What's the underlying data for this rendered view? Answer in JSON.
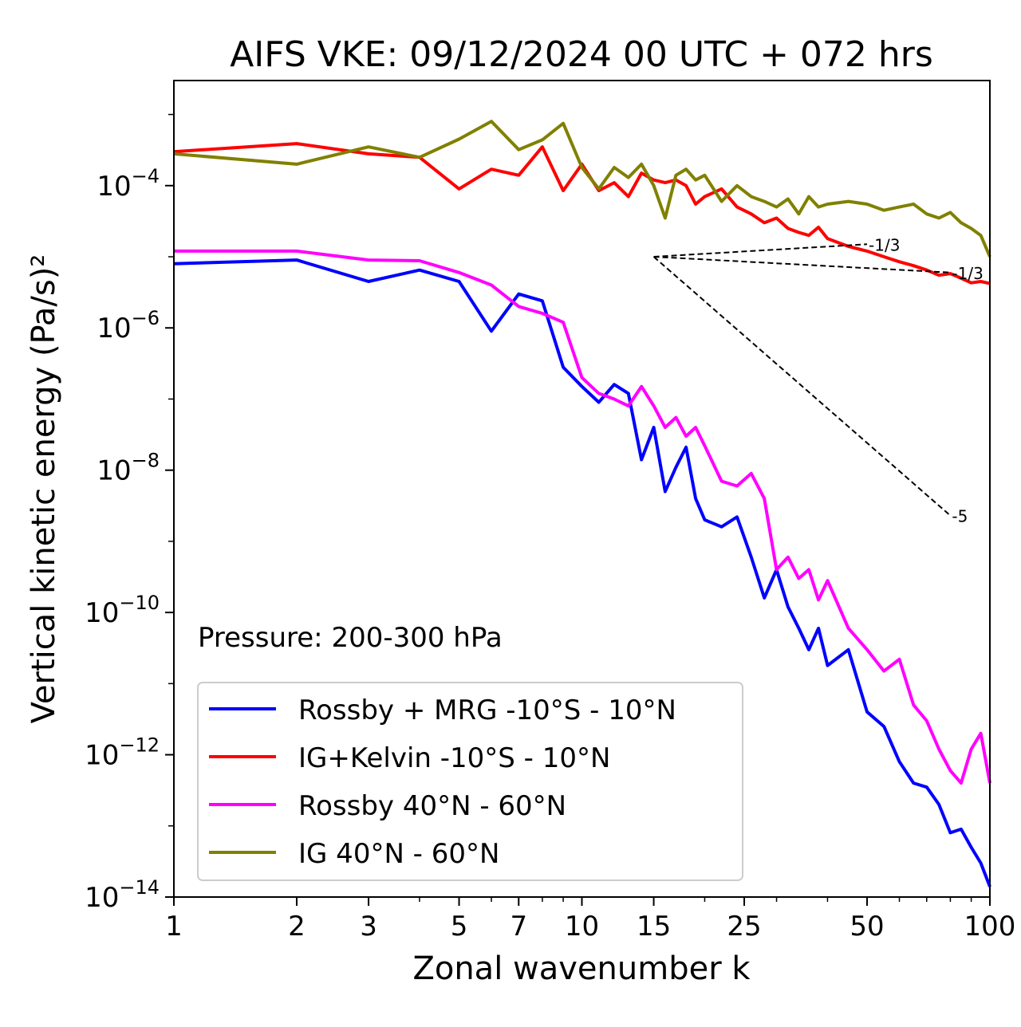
{
  "chart_data": {
    "type": "line",
    "title": "AIFS VKE: 09/12/2024 00 UTC + 072 hrs",
    "xlabel": "Zonal wavenumber k",
    "ylabel": "Vertical kinetic energy (Pa/s)²",
    "xscale": "log",
    "yscale": "log",
    "xlim": [
      1,
      100
    ],
    "ylim": [
      1e-14,
      0.003
    ],
    "xticks": [
      1,
      2,
      3,
      5,
      7,
      10,
      15,
      25,
      50,
      100
    ],
    "xtick_labels": [
      "1",
      "2",
      "3",
      "5",
      "7",
      "10",
      "15",
      "25",
      "50",
      "100"
    ],
    "yticks": [
      1e-14,
      1e-12,
      1e-10,
      1e-08,
      1e-06,
      0.0001
    ],
    "ytick_exponents": [
      "−14",
      "−12",
      "−10",
      "−8",
      "−6",
      "−4"
    ],
    "ytick_base": "10",
    "annotation": "Pressure: 200-300 hPa",
    "legend_position": "lower-left",
    "grid": false,
    "series": [
      {
        "name": "Rossby + MRG -10°S - 10°N",
        "color": "#0000ff",
        "x": [
          1,
          2,
          3,
          4,
          5,
          6,
          7,
          8,
          9,
          10,
          11,
          12,
          13,
          14,
          15,
          16,
          17,
          18,
          19,
          20,
          22,
          24,
          26,
          28,
          30,
          32,
          34,
          36,
          38,
          40,
          45,
          50,
          55,
          60,
          65,
          70,
          75,
          80,
          85,
          90,
          95,
          100
        ],
        "y": [
          8e-06,
          9e-06,
          4.5e-06,
          6.5e-06,
          4.5e-06,
          9e-07,
          3e-06,
          2.4e-06,
          2.8e-07,
          1.5e-07,
          9e-08,
          1.6e-07,
          1.2e-07,
          1.4e-08,
          4e-08,
          5e-09,
          1.1e-08,
          2.1e-08,
          4e-09,
          2e-09,
          1.6e-09,
          2.2e-09,
          6e-10,
          1.6e-10,
          4e-10,
          1.2e-10,
          6e-11,
          3e-11,
          6e-11,
          1.8e-11,
          3e-11,
          4e-12,
          2.5e-12,
          8e-13,
          4e-13,
          3.5e-13,
          2e-13,
          8e-14,
          9e-14,
          5e-14,
          3e-14,
          1.4e-14
        ]
      },
      {
        "name": "IG+Kelvin -10°S - 10°N",
        "color": "#ff0000",
        "x": [
          1,
          2,
          3,
          4,
          5,
          6,
          7,
          8,
          9,
          10,
          11,
          12,
          13,
          14,
          15,
          16,
          17,
          18,
          19,
          20,
          22,
          24,
          26,
          28,
          30,
          32,
          34,
          36,
          38,
          40,
          45,
          50,
          55,
          60,
          65,
          70,
          75,
          80,
          85,
          90,
          95,
          100
        ],
        "y": [
          0.0003,
          0.00039,
          0.00028,
          0.00025,
          9e-05,
          0.00017,
          0.00014,
          0.00035,
          8.5e-05,
          0.0002,
          8.5e-05,
          0.00011,
          7e-05,
          0.00015,
          0.00012,
          0.00011,
          0.00012,
          0.0001,
          5.5e-05,
          7e-05,
          9e-05,
          5e-05,
          4e-05,
          3e-05,
          3.5e-05,
          2.5e-05,
          2.2e-05,
          2e-05,
          2.6e-05,
          1.8e-05,
          1.4e-05,
          1.2e-05,
          1e-05,
          8.5e-06,
          7.5e-06,
          6.5e-06,
          5.5e-06,
          5.8e-06,
          5e-06,
          4.3e-06,
          4.5e-06,
          4.2e-06
        ]
      },
      {
        "name": "Rossby 40°N - 60°N",
        "color": "#ff00ff",
        "x": [
          1,
          2,
          3,
          4,
          5,
          6,
          7,
          8,
          9,
          10,
          11,
          12,
          13,
          14,
          15,
          16,
          17,
          18,
          19,
          20,
          22,
          24,
          26,
          28,
          30,
          32,
          34,
          36,
          38,
          40,
          45,
          50,
          55,
          60,
          65,
          70,
          75,
          80,
          85,
          90,
          95,
          100
        ],
        "y": [
          1.2e-05,
          1.2e-05,
          9e-06,
          8.8e-06,
          6e-06,
          4e-06,
          2e-06,
          1.6e-06,
          1.2e-06,
          2e-07,
          1.2e-07,
          1e-07,
          8e-08,
          1.5e-07,
          8e-08,
          4e-08,
          5.5e-08,
          3e-08,
          4e-08,
          2.2e-08,
          7e-09,
          6e-09,
          9e-09,
          4e-09,
          4e-10,
          6e-10,
          3e-10,
          4e-10,
          1.5e-10,
          2.8e-10,
          6e-11,
          3e-11,
          1.5e-11,
          2.2e-11,
          5e-12,
          3e-12,
          1.2e-12,
          6e-13,
          4e-13,
          1.2e-12,
          2e-12,
          4e-13
        ]
      },
      {
        "name": "IG 40°N - 60°N",
        "color": "#808000",
        "x": [
          1,
          2,
          3,
          4,
          5,
          6,
          7,
          8,
          9,
          10,
          11,
          12,
          13,
          14,
          15,
          16,
          17,
          18,
          19,
          20,
          22,
          24,
          26,
          28,
          30,
          32,
          34,
          36,
          38,
          40,
          45,
          50,
          55,
          60,
          65,
          70,
          75,
          80,
          85,
          90,
          95,
          100
        ],
        "y": [
          0.00028,
          0.0002,
          0.00035,
          0.00025,
          0.00045,
          0.0008,
          0.00032,
          0.00044,
          0.00075,
          0.00018,
          9e-05,
          0.00018,
          0.00013,
          0.0002,
          0.0001,
          3.5e-05,
          0.00014,
          0.00017,
          0.00012,
          0.00014,
          6e-05,
          0.0001,
          7e-05,
          6e-05,
          5e-05,
          6.5e-05,
          4e-05,
          7e-05,
          5e-05,
          5.5e-05,
          6e-05,
          5.5e-05,
          4.5e-05,
          5e-05,
          5.5e-05,
          4e-05,
          3.5e-05,
          4.2e-05,
          3e-05,
          2.5e-05,
          2e-05,
          1e-05
        ]
      }
    ],
    "reference_slopes": [
      {
        "label": "-1/3",
        "x": [
          15,
          50
        ],
        "y": [
          1e-05,
          1.5e-05
        ]
      },
      {
        "label": "-1/3",
        "x": [
          15,
          80
        ],
        "y": [
          1e-05,
          6e-06
        ]
      },
      {
        "label": "-5",
        "x": [
          15,
          80
        ],
        "y": [
          1e-05,
          2.3e-09
        ]
      }
    ]
  }
}
